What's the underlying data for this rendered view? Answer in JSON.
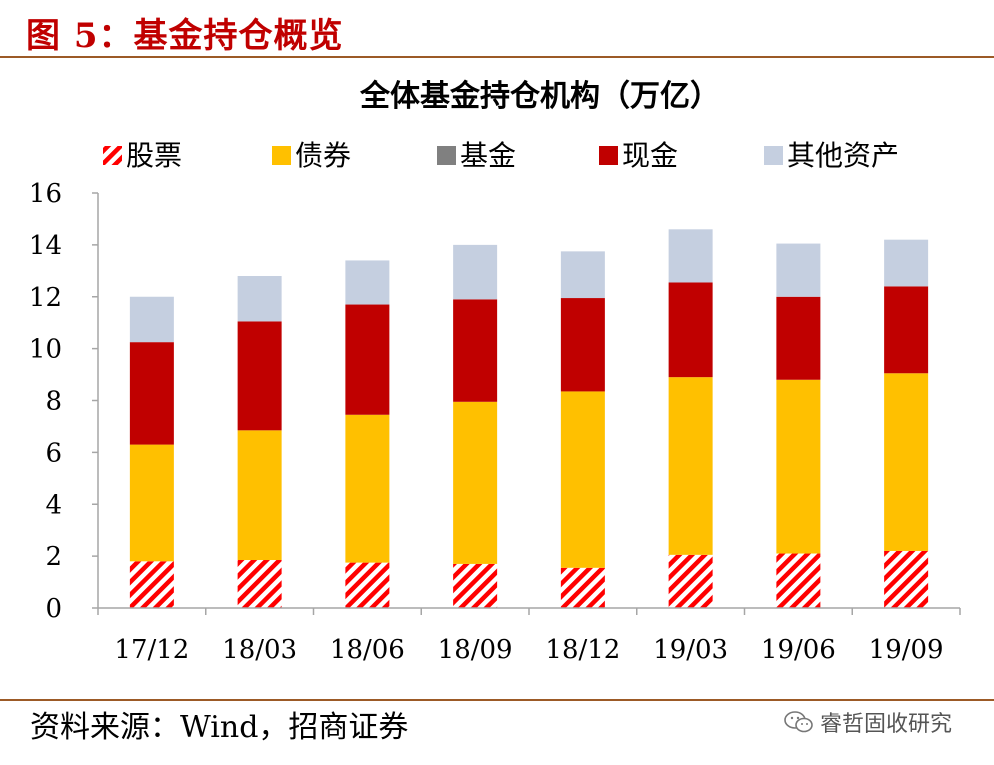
{
  "figure_title": "图 5：基金持仓概览",
  "source": "资料来源：Wind，招商证券",
  "watermark": "睿哲固收研究",
  "chart_data": {
    "type": "bar",
    "stacked": true,
    "title": "全体基金持仓机构（万亿）",
    "categories": [
      "17/12",
      "18/03",
      "18/06",
      "18/09",
      "18/12",
      "19/03",
      "19/06",
      "19/09"
    ],
    "series": [
      {
        "name": "股票",
        "color": "#ff0000",
        "pattern": "diagonal-stripes",
        "values": [
          1.8,
          1.85,
          1.75,
          1.7,
          1.55,
          2.05,
          2.1,
          2.2
        ]
      },
      {
        "name": "债券",
        "color": "#ffc000",
        "values": [
          4.5,
          5.0,
          5.7,
          6.25,
          6.8,
          6.85,
          6.7,
          6.85
        ]
      },
      {
        "name": "基金",
        "color": "#808080",
        "values": [
          0.0,
          0.0,
          0.0,
          0.0,
          0.0,
          0.0,
          0.0,
          0.0
        ]
      },
      {
        "name": "现金",
        "color": "#c00000",
        "values": [
          3.95,
          4.2,
          4.25,
          3.95,
          3.6,
          3.65,
          3.2,
          3.35
        ]
      },
      {
        "name": "其他资产",
        "color": "#c5cfe0",
        "values": [
          1.75,
          1.75,
          1.7,
          2.1,
          1.8,
          2.05,
          2.05,
          1.8
        ]
      }
    ],
    "ylim": [
      0,
      16
    ],
    "yticks": [
      0,
      2,
      4,
      6,
      8,
      10,
      12,
      14,
      16
    ],
    "grid": false,
    "legend_position": "top"
  }
}
